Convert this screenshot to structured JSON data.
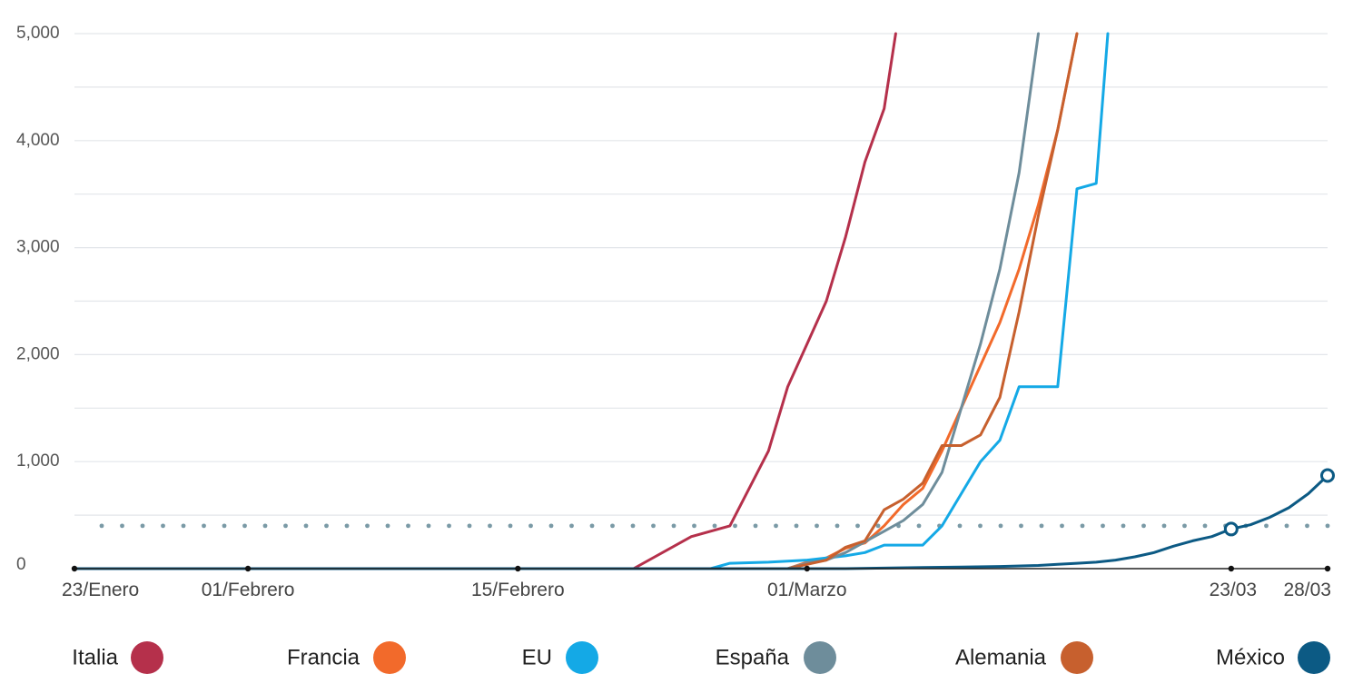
{
  "chart_data": {
    "type": "line",
    "title": "",
    "xlabel": "",
    "ylabel": "",
    "ylim": [
      0,
      5000
    ],
    "yticks": [
      0,
      1000,
      2000,
      3000,
      4000,
      5000
    ],
    "ytick_labels": [
      "0",
      "1,000",
      "2,000",
      "3,000",
      "4,000",
      "5,000"
    ],
    "xlim": [
      0,
      65
    ],
    "xticks": [
      {
        "day": 0,
        "label": "23/Enero"
      },
      {
        "day": 9,
        "label": "01/Febrero"
      },
      {
        "day": 23,
        "label": "15/Febrero"
      },
      {
        "day": 38,
        "label": "01/Marzo"
      },
      {
        "day": 60,
        "label": "23/03"
      },
      {
        "day": 65,
        "label": "28/03"
      }
    ],
    "grid": true,
    "reference_line": {
      "value": 400,
      "style": "dotted",
      "color": "#7a9aa6"
    },
    "legend_position": "bottom",
    "series": [
      {
        "name": "Italia",
        "color": "#b5304b",
        "points": [
          [
            0,
            0
          ],
          [
            29,
            0
          ],
          [
            32,
            300
          ],
          [
            34,
            400
          ],
          [
            36,
            1100
          ],
          [
            37,
            1700
          ],
          [
            38,
            2100
          ],
          [
            39,
            2500
          ],
          [
            40,
            3100
          ],
          [
            41,
            3800
          ],
          [
            42,
            4300
          ],
          [
            42.6,
            5000
          ]
        ]
      },
      {
        "name": "Francia",
        "color": "#f26a2b",
        "points": [
          [
            0,
            0
          ],
          [
            37,
            0
          ],
          [
            38,
            60
          ],
          [
            39,
            100
          ],
          [
            40,
            190
          ],
          [
            41,
            240
          ],
          [
            42,
            400
          ],
          [
            43,
            600
          ],
          [
            44,
            750
          ],
          [
            45,
            1100
          ],
          [
            46,
            1500
          ],
          [
            47,
            1900
          ],
          [
            48,
            2300
          ],
          [
            49,
            2800
          ],
          [
            50,
            3400
          ],
          [
            51,
            4100
          ],
          [
            52,
            5000
          ]
        ]
      },
      {
        "name": "EU",
        "color": "#14a9e6",
        "points": [
          [
            0,
            0
          ],
          [
            33,
            0
          ],
          [
            34,
            50
          ],
          [
            36,
            60
          ],
          [
            37,
            70
          ],
          [
            38,
            80
          ],
          [
            39,
            100
          ],
          [
            40,
            120
          ],
          [
            41,
            150
          ],
          [
            42,
            220
          ],
          [
            43,
            220
          ],
          [
            44,
            220
          ],
          [
            45,
            400
          ],
          [
            46,
            700
          ],
          [
            47,
            1000
          ],
          [
            48,
            1200
          ],
          [
            49,
            1700
          ],
          [
            50,
            1700
          ],
          [
            51,
            1700
          ],
          [
            52,
            3550
          ],
          [
            53,
            3600
          ],
          [
            53.6,
            5000
          ]
        ]
      },
      {
        "name": "España",
        "color": "#6e8d9b",
        "points": [
          [
            0,
            0
          ],
          [
            37,
            0
          ],
          [
            38,
            50
          ],
          [
            39,
            80
          ],
          [
            40,
            150
          ],
          [
            41,
            250
          ],
          [
            42,
            350
          ],
          [
            43,
            450
          ],
          [
            44,
            600
          ],
          [
            45,
            900
          ],
          [
            46,
            1500
          ],
          [
            47,
            2100
          ],
          [
            48,
            2800
          ],
          [
            49,
            3700
          ],
          [
            50,
            5000
          ]
        ]
      },
      {
        "name": "Alemania",
        "color": "#c7602e",
        "points": [
          [
            0,
            0
          ],
          [
            37,
            0
          ],
          [
            38,
            40
          ],
          [
            39,
            80
          ],
          [
            40,
            200
          ],
          [
            41,
            260
          ],
          [
            42,
            550
          ],
          [
            43,
            650
          ],
          [
            44,
            800
          ],
          [
            45,
            1150
          ],
          [
            46,
            1150
          ],
          [
            47,
            1250
          ],
          [
            48,
            1600
          ],
          [
            49,
            2400
          ],
          [
            50,
            3300
          ],
          [
            51,
            4100
          ],
          [
            52,
            5000
          ]
        ]
      },
      {
        "name": "México",
        "color": "#0c5a84",
        "points": [
          [
            0,
            0
          ],
          [
            40,
            0
          ],
          [
            42,
            5
          ],
          [
            44,
            10
          ],
          [
            46,
            15
          ],
          [
            48,
            20
          ],
          [
            50,
            30
          ],
          [
            51,
            40
          ],
          [
            52,
            50
          ],
          [
            53,
            60
          ],
          [
            54,
            80
          ],
          [
            55,
            110
          ],
          [
            56,
            150
          ],
          [
            57,
            210
          ],
          [
            58,
            260
          ],
          [
            59,
            300
          ],
          [
            60,
            370
          ],
          [
            61,
            410
          ],
          [
            62,
            480
          ],
          [
            63,
            570
          ],
          [
            64,
            700
          ],
          [
            65,
            870
          ]
        ],
        "markers": [
          [
            60,
            370
          ],
          [
            65,
            870
          ]
        ]
      }
    ]
  }
}
